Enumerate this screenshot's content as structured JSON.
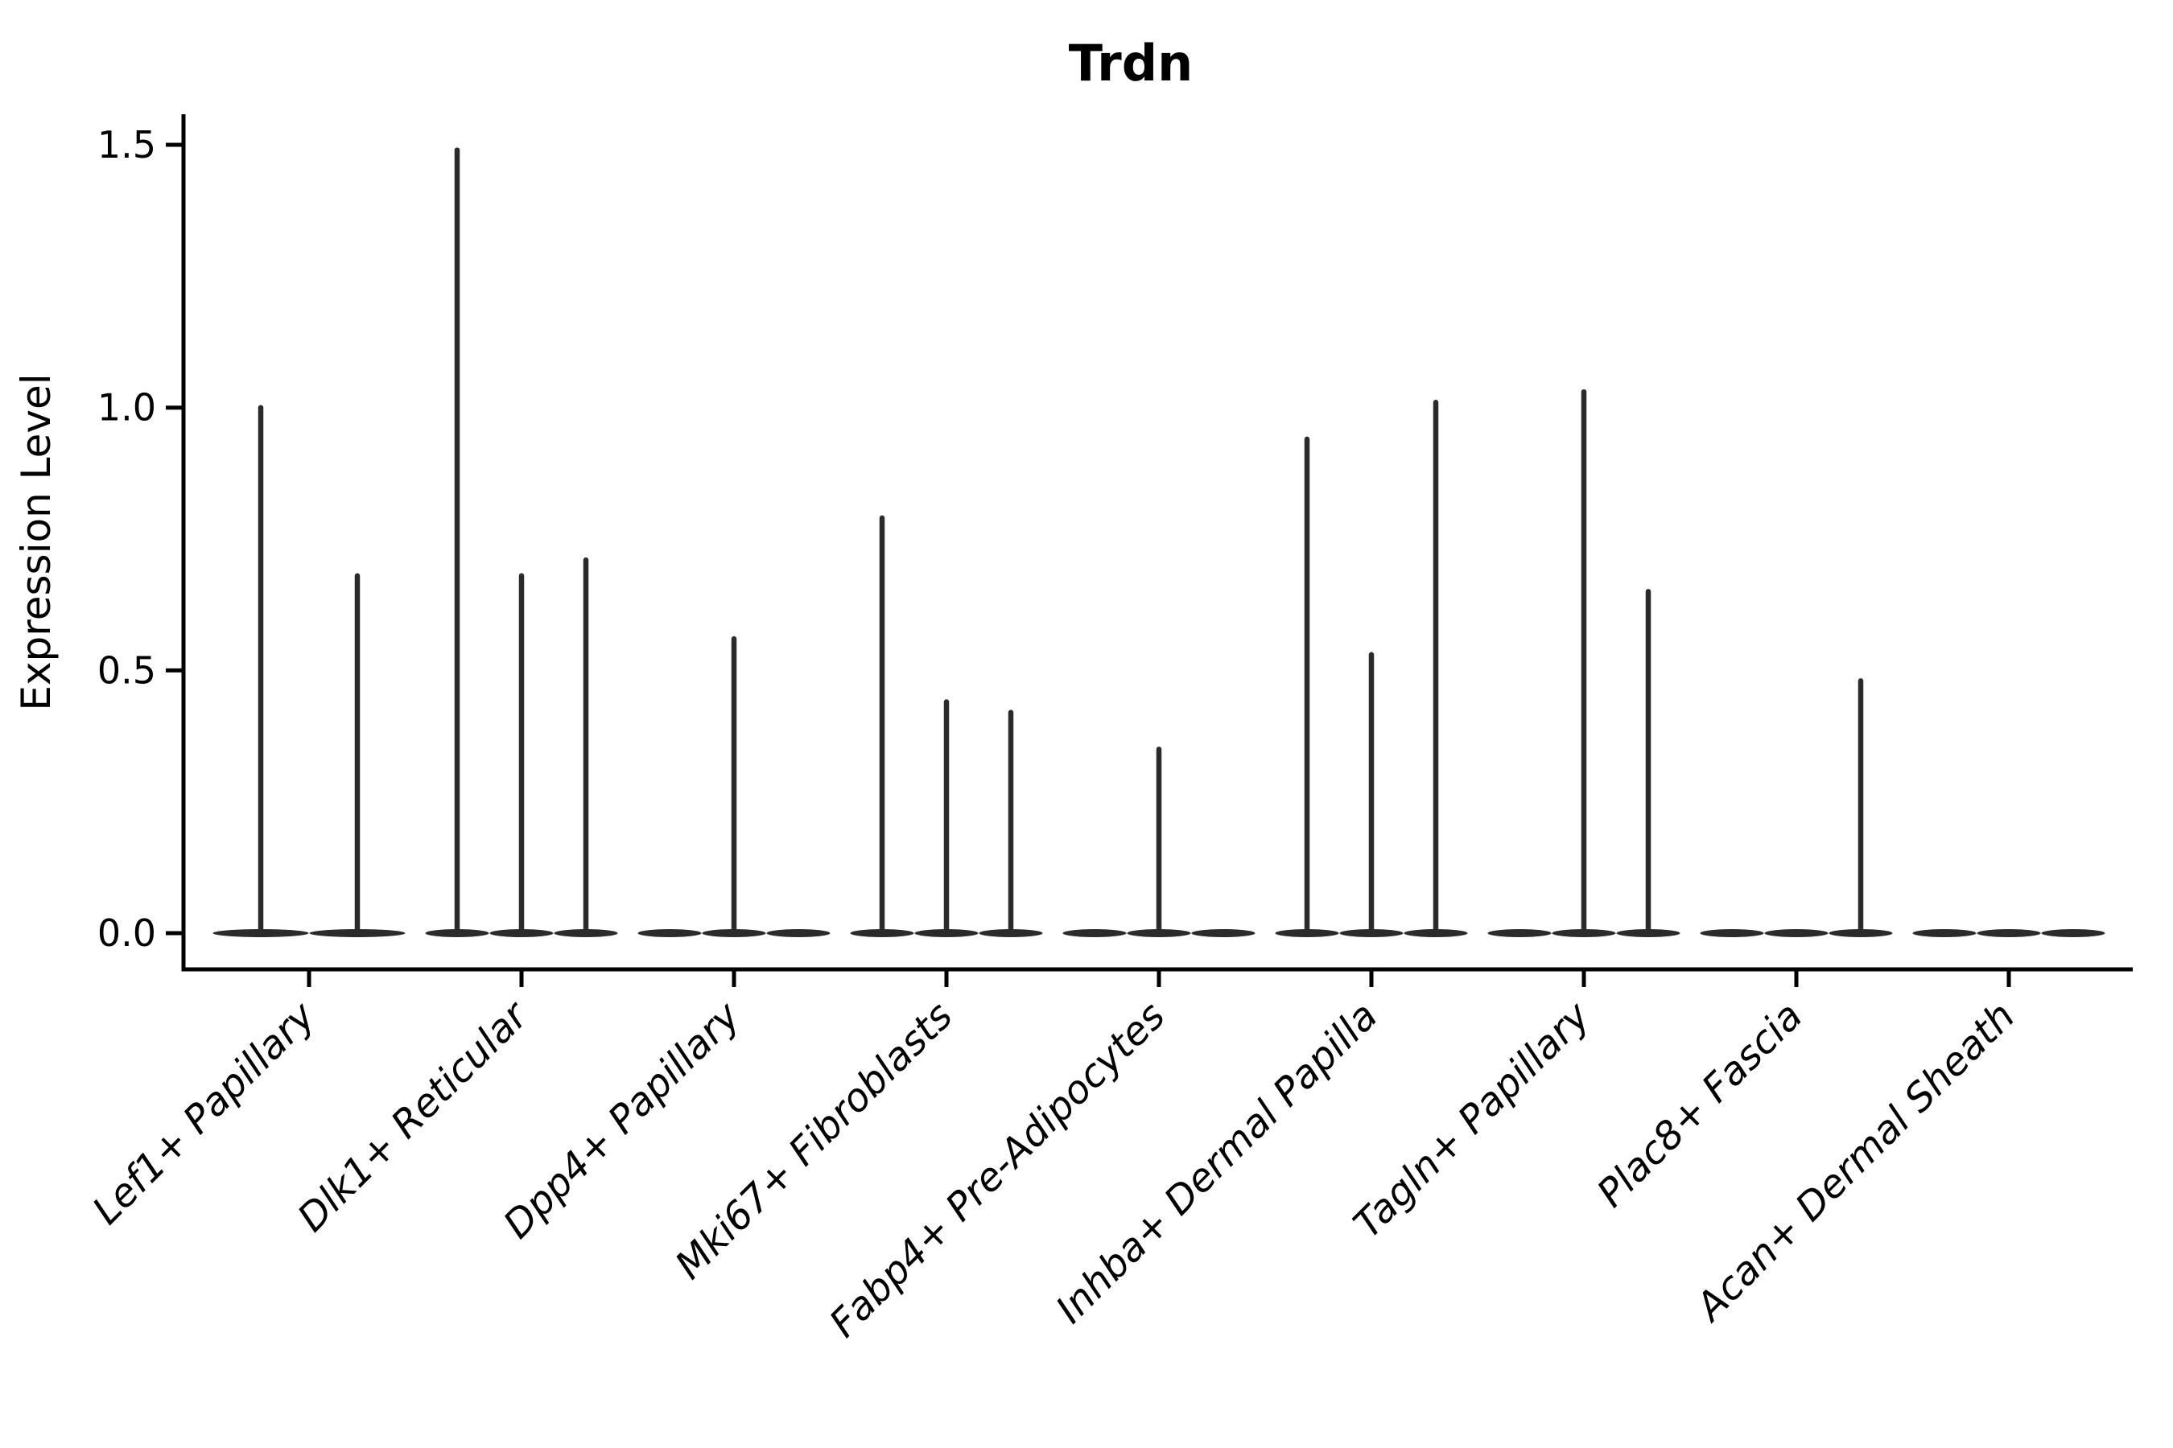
{
  "chart_data": {
    "type": "violin",
    "title": "Trdn",
    "ylabel": "Expression Level",
    "xlabel": "",
    "grid": false,
    "legend_position": "none",
    "ylim": [
      -0.07,
      1.56
    ],
    "ytick_labels": [
      "0.0",
      "0.5",
      "1.0",
      "1.5"
    ],
    "ytick_values": [
      0.0,
      0.5,
      1.0,
      1.5
    ],
    "categories": [
      "Lef1+ Papillary",
      "Dlk1+ Reticular",
      "Dpp4+ Papillary",
      "Mki67+ Fibroblasts",
      "Fabp4+ Pre-Adipocytes",
      "Inhba+ Dermal Papilla",
      "Tagln+ Papillary",
      "Plac8+ Fascia",
      "Acan+ Dermal Sheath"
    ],
    "groups": [
      {
        "category": "Lef1+ Papillary",
        "violin_peaks": [
          1.0,
          0.68
        ]
      },
      {
        "category": "Dlk1+ Reticular",
        "violin_peaks": [
          1.49,
          0.68,
          0.71
        ]
      },
      {
        "category": "Dpp4+ Papillary",
        "violin_peaks": [
          0,
          0.56,
          0
        ]
      },
      {
        "category": "Mki67+ Fibroblasts",
        "violin_peaks": [
          0.79,
          0.44,
          0.42
        ]
      },
      {
        "category": "Fabp4+ Pre-Adipocytes",
        "violin_peaks": [
          0,
          0.35,
          0
        ]
      },
      {
        "category": "Inhba+ Dermal Papilla",
        "violin_peaks": [
          0.94,
          0.53,
          1.01
        ]
      },
      {
        "category": "Tagln+ Papillary",
        "violin_peaks": [
          0,
          1.03,
          0.65
        ]
      },
      {
        "category": "Plac8+ Fascia",
        "violin_peaks": [
          0,
          0,
          0.48
        ]
      },
      {
        "category": "Acan+ Dermal Sheath",
        "violin_peaks": [
          0,
          0,
          0
        ]
      }
    ],
    "colors": {
      "violin": "#2b2b2b",
      "axis": "#000000",
      "background": "#ffffff"
    }
  }
}
